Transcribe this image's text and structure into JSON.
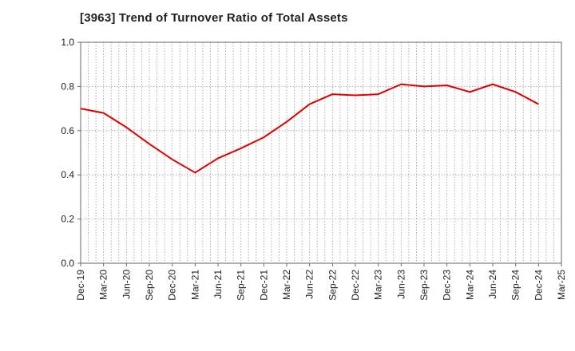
{
  "chart_data": {
    "type": "line",
    "title": "[3963]  Trend of Turnover Ratio of Total Assets",
    "xlabel": "",
    "ylabel": "",
    "ylim": [
      0.0,
      1.0
    ],
    "yticks": [
      "0.0",
      "0.2",
      "0.4",
      "0.6",
      "0.8",
      "1.0"
    ],
    "categories": [
      "Dec-19",
      "Mar-20",
      "Jun-20",
      "Sep-20",
      "Dec-20",
      "Mar-21",
      "Jun-21",
      "Sep-21",
      "Dec-21",
      "Mar-22",
      "Jun-22",
      "Sep-22",
      "Dec-22",
      "Mar-23",
      "Jun-23",
      "Sep-23",
      "Dec-23",
      "Mar-24",
      "Jun-24",
      "Sep-24",
      "Dec-24",
      "Mar-25"
    ],
    "series": [
      {
        "name": "",
        "color": "#e00000",
        "values": [
          0.7,
          0.68,
          0.615,
          0.54,
          0.47,
          0.41,
          0.475,
          0.52,
          0.57,
          0.64,
          0.72,
          0.765,
          0.76,
          0.765,
          0.81,
          0.8,
          0.805,
          0.775,
          0.81,
          0.775,
          0.72,
          null
        ]
      }
    ],
    "grid": true
  }
}
